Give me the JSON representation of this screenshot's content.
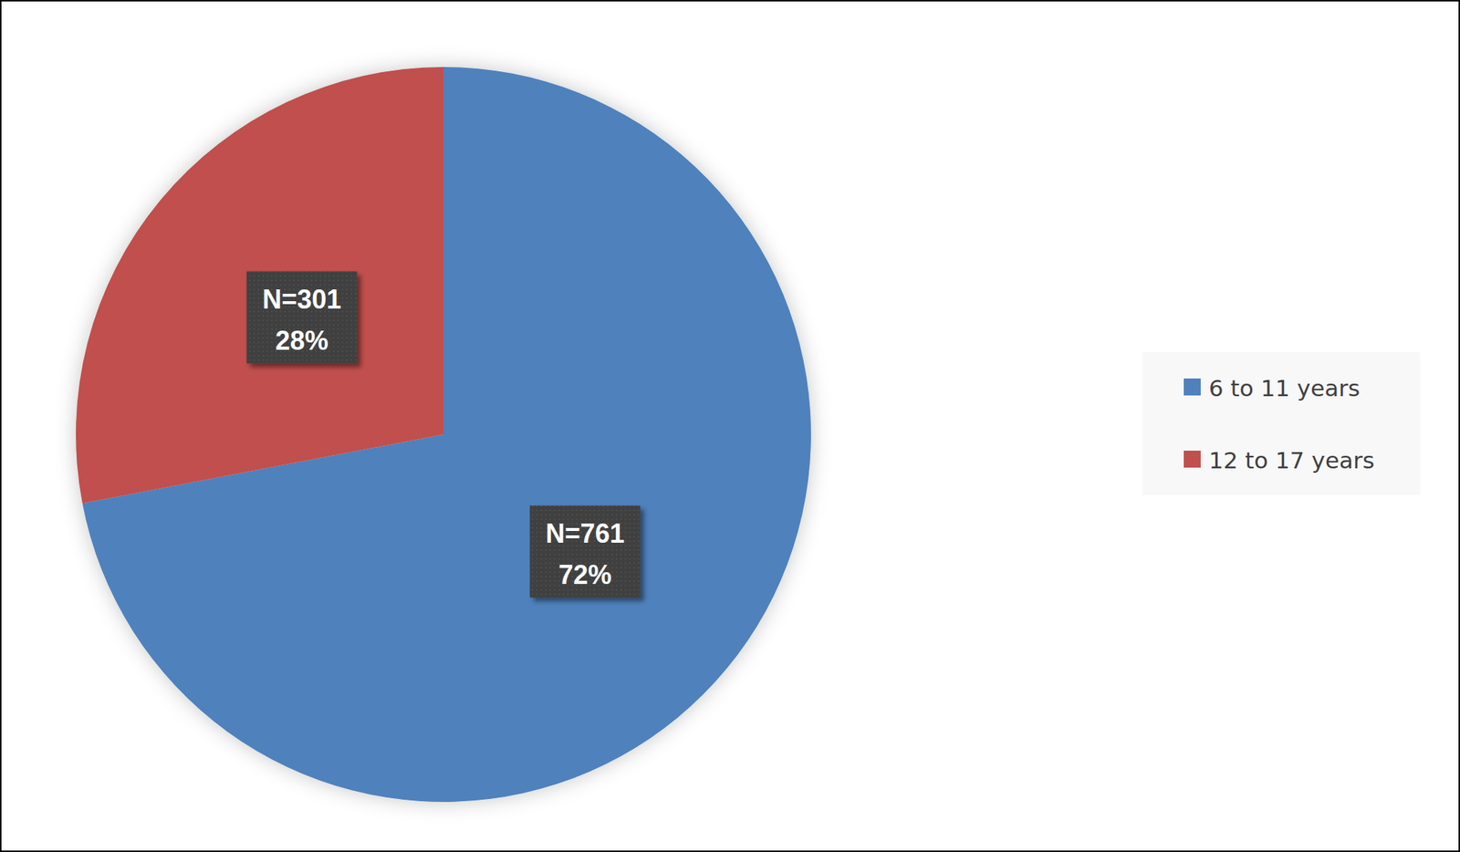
{
  "chart_data": {
    "type": "pie",
    "categories": [
      "6 to 11 years",
      "12 to 17 years"
    ],
    "values": [
      72,
      28
    ],
    "value_labels": [
      "72%",
      "28%"
    ],
    "n_labels": [
      "N=761",
      "N=301"
    ],
    "colors": [
      "#4f81bd",
      "#c0504d"
    ],
    "legend": "right",
    "data_labels": true
  }
}
